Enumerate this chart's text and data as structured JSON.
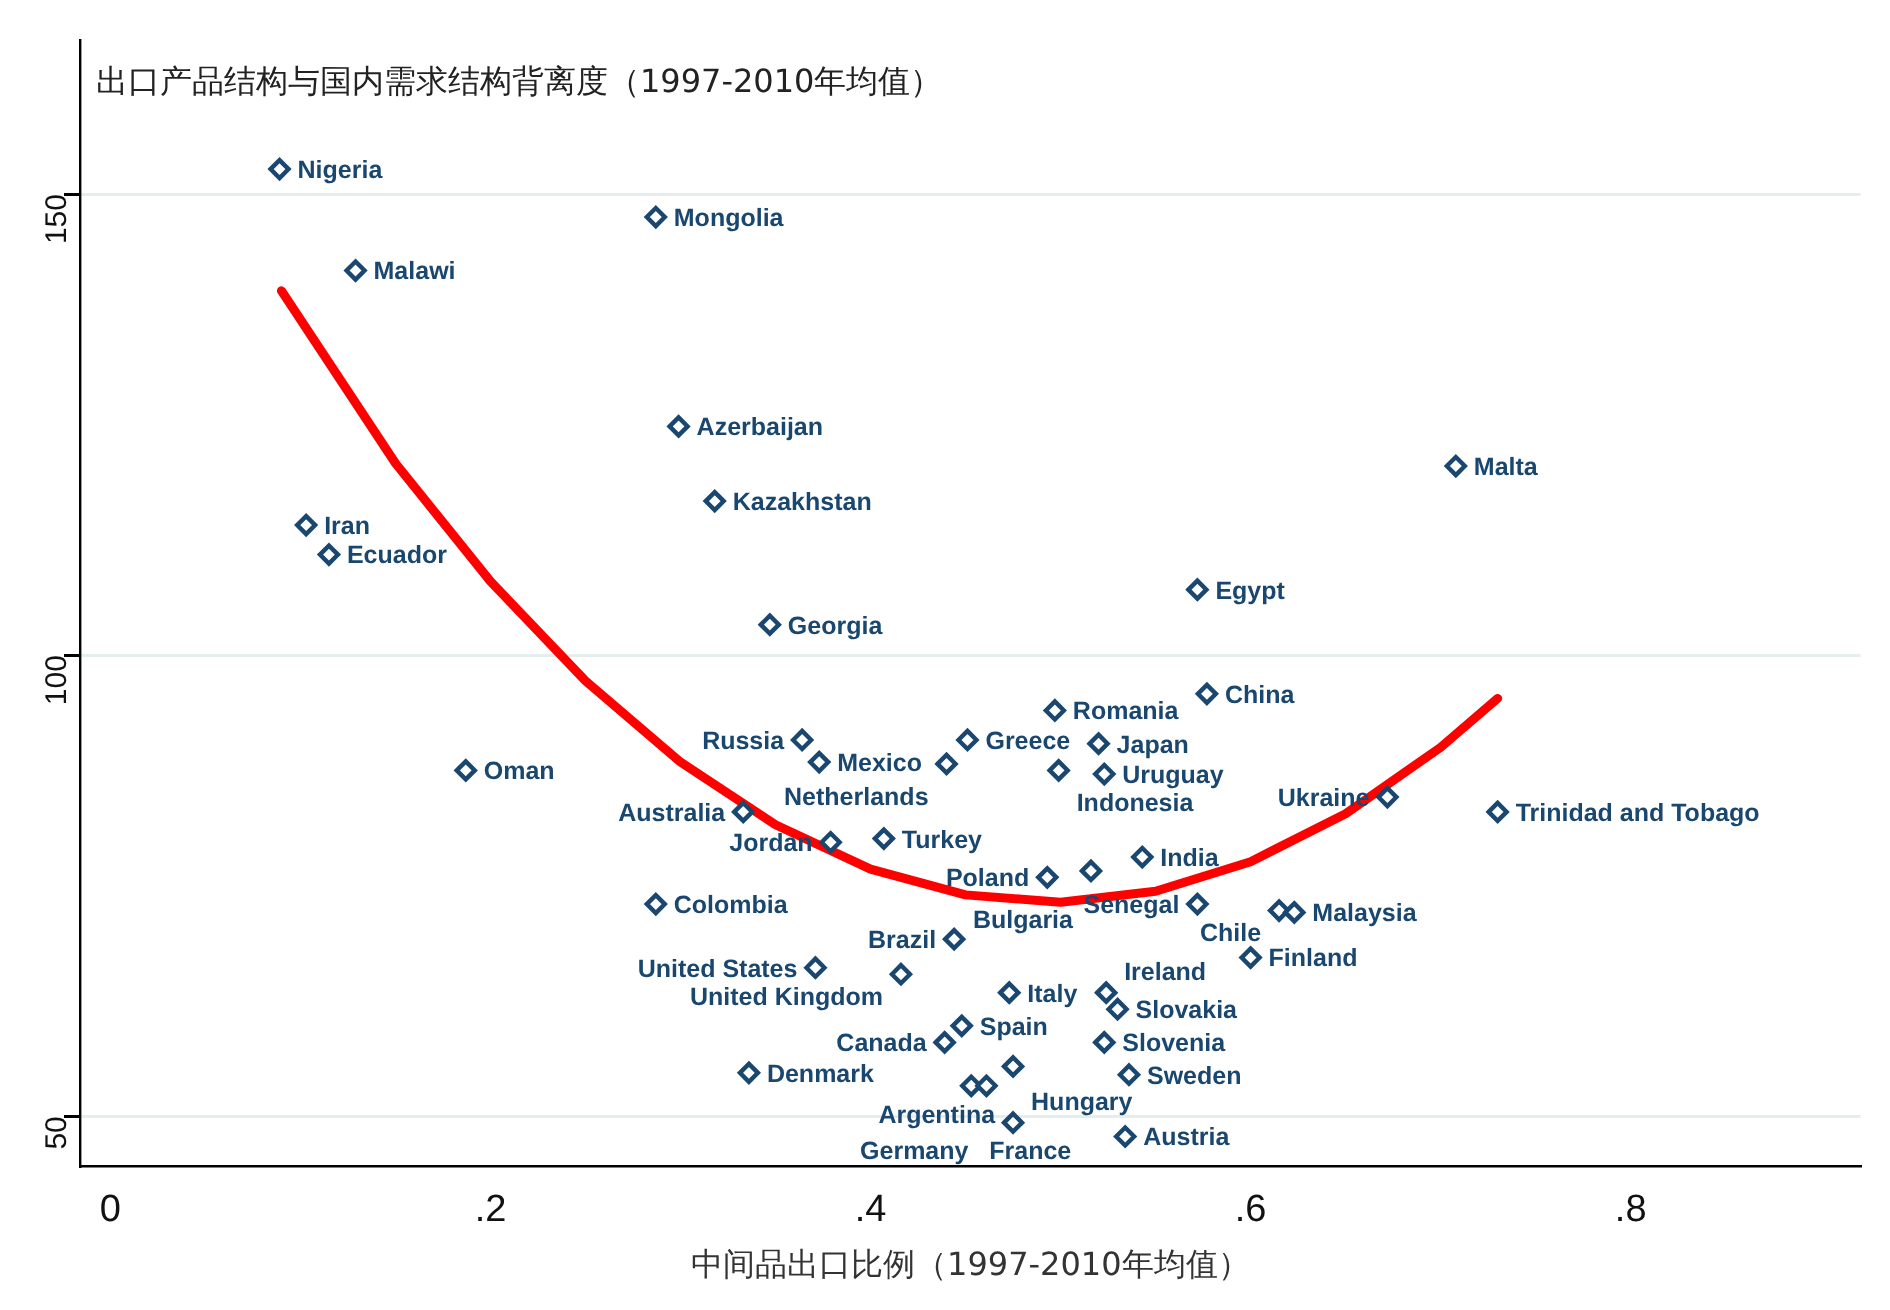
{
  "chart_data": {
    "type": "scatter",
    "title": "出口产品结构与国内需求结构背离度（1997-2010年均值）",
    "xlabel": "中间品出口比例（1997-2010年均值）",
    "xlim": [
      -0.016,
      0.921
    ],
    "ylim": [
      44.6,
      166.7
    ],
    "xticks": [
      {
        "value": 0,
        "label": "0"
      },
      {
        "value": 0.2,
        "label": ".2"
      },
      {
        "value": 0.4,
        "label": ".4"
      },
      {
        "value": 0.6,
        "label": ".6"
      },
      {
        "value": 0.8,
        "label": ".8"
      }
    ],
    "yticks": [
      50,
      100,
      150
    ],
    "grid": "y",
    "legend": false,
    "series": [
      {
        "type": "scatter",
        "color": "#1a476f",
        "marker": "diamond",
        "x": [
          0.089,
          0.287,
          0.129,
          0.299,
          0.318,
          0.103,
          0.115,
          0.708,
          0.572,
          0.347,
          0.577,
          0.497,
          0.364,
          0.451,
          0.52,
          0.373,
          0.44,
          0.499,
          0.523,
          0.187,
          0.672,
          0.73,
          0.333,
          0.379,
          0.407,
          0.543,
          0.493,
          0.516,
          0.287,
          0.572,
          0.615,
          0.623,
          0.6,
          0.444,
          0.371,
          0.416,
          0.473,
          0.524,
          0.53,
          0.448,
          0.439,
          0.523,
          0.475,
          0.536,
          0.336,
          0.453,
          0.461,
          0.475,
          0.534
        ],
        "values": [
          152.7,
          147.5,
          141.7,
          124.8,
          116.7,
          114.1,
          110.9,
          120.5,
          107.1,
          103.3,
          95.8,
          94.0,
          90.8,
          90.8,
          90.4,
          88.4,
          88.2,
          87.5,
          87.1,
          87.5,
          84.6,
          83.0,
          83.0,
          79.7,
          80.1,
          78.1,
          75.9,
          76.6,
          73.0,
          73.0,
          72.3,
          72.1,
          67.2,
          69.2,
          66.1,
          65.4,
          63.4,
          63.4,
          61.6,
          59.8,
          58.0,
          58.0,
          55.4,
          54.5,
          54.7,
          53.3,
          53.3,
          49.3,
          47.8
        ]
      },
      {
        "type": "line",
        "color": "#ff0000",
        "marker": "none",
        "x": [
          0.09,
          0.15,
          0.2,
          0.25,
          0.3,
          0.35,
          0.4,
          0.45,
          0.5,
          0.55,
          0.6,
          0.65,
          0.7,
          0.73
        ],
        "values": [
          139.5,
          120.8,
          108.0,
          97.2,
          88.4,
          81.6,
          76.8,
          74.0,
          73.2,
          74.4,
          77.6,
          82.8,
          90.0,
          95.3
        ]
      }
    ],
    "annotations": [
      {
        "text": "Nigeria",
        "x": 0.089,
        "y": 152.7
      },
      {
        "text": "Mongolia",
        "x": 0.287,
        "y": 147.5
      },
      {
        "text": "Malawi",
        "x": 0.129,
        "y": 141.7
      },
      {
        "text": "Azerbaijan",
        "x": 0.299,
        "y": 124.8
      },
      {
        "text": "Kazakhstan",
        "x": 0.318,
        "y": 116.7
      },
      {
        "text": "Iran",
        "x": 0.103,
        "y": 114.1
      },
      {
        "text": "Ecuador",
        "x": 0.115,
        "y": 110.9
      },
      {
        "text": "Malta",
        "x": 0.708,
        "y": 120.5
      },
      {
        "text": "Egypt",
        "x": 0.572,
        "y": 107.1
      },
      {
        "text": "Georgia",
        "x": 0.347,
        "y": 103.3
      },
      {
        "text": "China",
        "x": 0.577,
        "y": 95.8
      },
      {
        "text": "Romania",
        "x": 0.497,
        "y": 94.0
      },
      {
        "text": "Russia",
        "x": 0.364,
        "y": 90.8
      },
      {
        "text": "Greece",
        "x": 0.451,
        "y": 90.8
      },
      {
        "text": "Japan",
        "x": 0.52,
        "y": 90.4
      },
      {
        "text": "Mexico",
        "x": 0.373,
        "y": 88.4
      },
      {
        "text": "Netherlands",
        "x": 0.44,
        "y": 88.2
      },
      {
        "text": "Indonesia",
        "x": 0.499,
        "y": 87.5
      },
      {
        "text": "Uruguay",
        "x": 0.523,
        "y": 87.1
      },
      {
        "text": "Oman",
        "x": 0.187,
        "y": 87.5
      },
      {
        "text": "Ukraine",
        "x": 0.672,
        "y": 84.6
      },
      {
        "text": "Trinidad and Tobago",
        "x": 0.73,
        "y": 83.0
      },
      {
        "text": "Australia",
        "x": 0.333,
        "y": 83.0
      },
      {
        "text": "Jordan",
        "x": 0.379,
        "y": 79.7
      },
      {
        "text": "Turkey",
        "x": 0.407,
        "y": 80.1
      },
      {
        "text": "India",
        "x": 0.543,
        "y": 78.1
      },
      {
        "text": "Poland",
        "x": 0.493,
        "y": 75.9
      },
      {
        "text": "Bulgaria",
        "x": 0.516,
        "y": 76.6
      },
      {
        "text": "Colombia",
        "x": 0.287,
        "y": 73.0
      },
      {
        "text": "Senegal",
        "x": 0.572,
        "y": 73.0
      },
      {
        "text": "Chile",
        "x": 0.615,
        "y": 72.3
      },
      {
        "text": "Malaysia",
        "x": 0.623,
        "y": 72.1
      },
      {
        "text": "Finland",
        "x": 0.6,
        "y": 67.2
      },
      {
        "text": "Brazil",
        "x": 0.444,
        "y": 69.2
      },
      {
        "text": "United States",
        "x": 0.371,
        "y": 66.1
      },
      {
        "text": "United Kingdom",
        "x": 0.416,
        "y": 65.4
      },
      {
        "text": "Italy",
        "x": 0.473,
        "y": 63.4
      },
      {
        "text": "Ireland",
        "x": 0.524,
        "y": 63.4
      },
      {
        "text": "Slovakia",
        "x": 0.53,
        "y": 61.6
      },
      {
        "text": "Spain",
        "x": 0.448,
        "y": 59.8
      },
      {
        "text": "Canada",
        "x": 0.439,
        "y": 58.0
      },
      {
        "text": "Slovenia",
        "x": 0.523,
        "y": 58.0
      },
      {
        "text": "Argentina",
        "x": 0.475,
        "y": 55.4
      },
      {
        "text": "Sweden",
        "x": 0.536,
        "y": 54.5
      },
      {
        "text": "Denmark",
        "x": 0.336,
        "y": 54.7
      },
      {
        "text": "France",
        "x": 0.453,
        "y": 53.3
      },
      {
        "text": "Germany",
        "x": 0.461,
        "y": 53.3
      },
      {
        "text": "Hungary",
        "x": 0.475,
        "y": 49.3
      },
      {
        "text": "Austria",
        "x": 0.534,
        "y": 47.8
      }
    ]
  }
}
